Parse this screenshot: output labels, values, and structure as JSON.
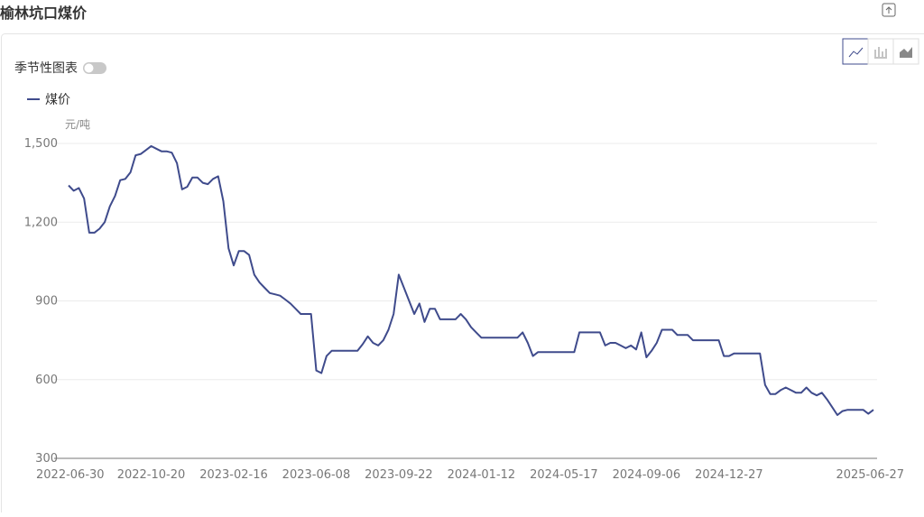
{
  "header": {
    "title": "榆林坑口煤价"
  },
  "controls": {
    "seasonal": "季节性图表"
  },
  "chart_data": {
    "type": "line",
    "y_label": "元/吨",
    "categories": [
      "2022-06-30",
      null,
      null,
      null,
      null,
      null,
      null,
      null,
      null,
      null,
      null,
      null,
      null,
      null,
      null,
      null,
      "2022-10-20",
      null,
      null,
      null,
      null,
      null,
      null,
      null,
      null,
      null,
      null,
      null,
      null,
      null,
      null,
      null,
      "2023-02-16",
      null,
      null,
      null,
      null,
      null,
      null,
      null,
      null,
      null,
      null,
      null,
      null,
      null,
      null,
      null,
      "2023-06-08",
      null,
      null,
      null,
      null,
      null,
      null,
      null,
      null,
      null,
      null,
      null,
      null,
      null,
      null,
      null,
      "2023-09-22",
      null,
      null,
      null,
      null,
      null,
      null,
      null,
      null,
      null,
      null,
      null,
      null,
      null,
      null,
      null,
      "2024-01-12",
      null,
      null,
      null,
      null,
      null,
      null,
      null,
      null,
      null,
      null,
      null,
      null,
      null,
      null,
      null,
      "2024-05-17",
      null,
      null,
      null,
      null,
      null,
      null,
      null,
      null,
      null,
      null,
      null,
      null,
      null,
      null,
      null,
      "2024-09-06",
      null,
      null,
      null,
      null,
      null,
      null,
      null,
      null,
      null,
      null,
      null,
      null,
      null,
      null,
      null,
      "2024-12-27",
      null,
      null,
      null,
      null,
      null,
      null,
      null,
      null,
      null,
      null,
      null,
      null,
      null,
      null,
      null,
      null,
      null,
      null,
      null,
      null,
      null,
      null,
      null,
      null,
      null,
      null,
      null,
      "2025-06-27"
    ],
    "series": [
      {
        "name": "煤价",
        "color": "#3f4b8c",
        "values": [
          1340,
          1320,
          1330,
          1290,
          1160,
          1160,
          1175,
          1200,
          1260,
          1300,
          1360,
          1365,
          1390,
          1455,
          1460,
          1475,
          1490,
          1480,
          1470,
          1470,
          1465,
          1425,
          1325,
          1335,
          1370,
          1370,
          1350,
          1345,
          1365,
          1375,
          1280,
          1100,
          1035,
          1090,
          1090,
          1075,
          1000,
          970,
          950,
          930,
          925,
          920,
          905,
          890,
          870,
          850,
          850,
          850,
          635,
          625,
          690,
          710,
          710,
          710,
          710,
          710,
          710,
          735,
          765,
          740,
          730,
          750,
          790,
          850,
          1000,
          950,
          900,
          850,
          890,
          820,
          870,
          870,
          830,
          830,
          830,
          830,
          850,
          830,
          800,
          780,
          760,
          760,
          760,
          760,
          760,
          760,
          760,
          760,
          780,
          740,
          690,
          705,
          705,
          705,
          705,
          705,
          705,
          705,
          705,
          780,
          780,
          780,
          780,
          780,
          730,
          740,
          740,
          730,
          720,
          730,
          715,
          780,
          685,
          710,
          740,
          790,
          790,
          790,
          770,
          770,
          770,
          750,
          750,
          750,
          750,
          750,
          750,
          690,
          690,
          700,
          700,
          700,
          700,
          700,
          700,
          580,
          545,
          545,
          560,
          570,
          560,
          550,
          550,
          570,
          550,
          540,
          550,
          525,
          495,
          465,
          480,
          485,
          485,
          485,
          485,
          470,
          485
        ]
      }
    ],
    "ylim": [
      300,
      1500
    ],
    "yticks": [
      300,
      600,
      900,
      {
        "value": 1200,
        "label": "1,200"
      },
      {
        "value": 1500,
        "label": "1,500"
      }
    ],
    "grid": true,
    "legend": "top-left"
  }
}
